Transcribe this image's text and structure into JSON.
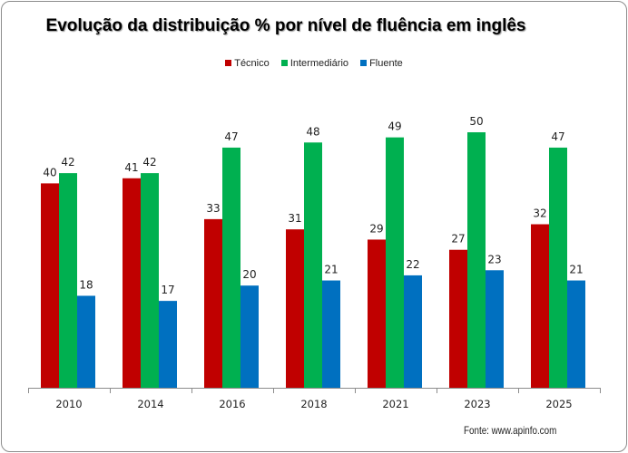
{
  "chart_data": {
    "type": "bar",
    "title": "Evolução da distribuição  % por nível de fluência em inglês",
    "xlabel": "",
    "ylabel": "",
    "ylim": [
      0,
      50
    ],
    "grid": false,
    "legend_position": "top",
    "categories": [
      "2010",
      "2014",
      "2016",
      "2018",
      "2021",
      "2023",
      "2025"
    ],
    "series": [
      {
        "name": "Técnico",
        "color": "#C00000",
        "values": [
          40,
          41,
          33,
          31,
          29,
          27,
          32
        ]
      },
      {
        "name": "Intermediário",
        "color": "#00B050",
        "values": [
          42,
          42,
          47,
          48,
          49,
          50,
          47
        ]
      },
      {
        "name": "Fluente",
        "color": "#0070C0",
        "values": [
          18,
          17,
          20,
          21,
          22,
          23,
          21
        ]
      }
    ],
    "source": "Fonte: www.apinfo.com"
  }
}
